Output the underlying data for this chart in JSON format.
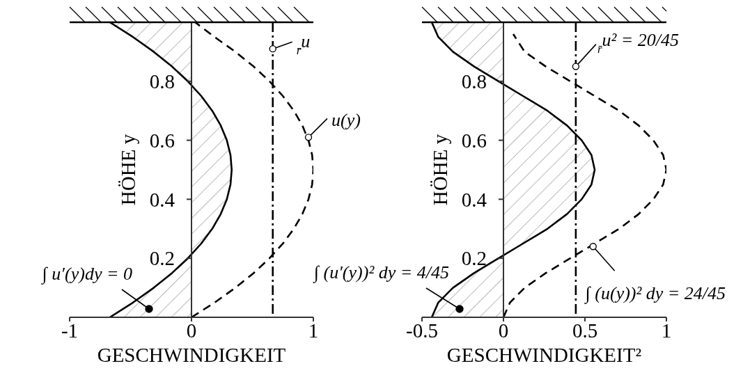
{
  "chart_data": [
    {
      "type": "line",
      "orientation": "horizontal",
      "xlabel": "GESCHWINDIGKEIT",
      "ylabel": "HÖHE y",
      "xlim": [
        -1,
        1
      ],
      "xticks": [
        -1,
        0,
        1
      ],
      "ylim": [
        0,
        1
      ],
      "yticks": [
        0.2,
        0.4,
        0.6,
        0.8
      ],
      "series": [
        {
          "type": "area",
          "color": "#000000",
          "line_style": "solid",
          "values": [
            -0.67,
            -0.48,
            -0.31,
            -0.16,
            -0.03,
            0.08,
            0.17,
            0.24,
            0.29,
            0.32,
            0.33,
            0.32,
            0.29,
            0.24,
            0.17,
            0.08,
            -0.03,
            -0.16,
            -0.31,
            -0.48,
            -0.67
          ],
          "x": [
            0,
            0.05,
            0.1,
            0.15,
            0.2,
            0.25,
            0.3,
            0.35,
            0.4,
            0.45,
            0.5,
            0.55,
            0.6,
            0.65,
            0.7,
            0.75,
            0.8,
            0.85,
            0.9,
            0.95,
            1
          ]
        },
        {
          "color": "#000000",
          "line_style": "dashed",
          "values": [
            0,
            0.19,
            0.36,
            0.51,
            0.64,
            0.75,
            0.84,
            0.91,
            0.96,
            0.99,
            1,
            0.99,
            0.96,
            0.91,
            0.84,
            0.75,
            0.64,
            0.51,
            0.36,
            0.19,
            0.03
          ],
          "x": [
            0,
            0.05,
            0.1,
            0.15,
            0.2,
            0.25,
            0.3,
            0.35,
            0.4,
            0.45,
            0.5,
            0.55,
            0.6,
            0.65,
            0.7,
            0.75,
            0.8,
            0.85,
            0.9,
            0.95,
            1
          ]
        }
      ],
      "ref_lines": [
        {
          "axis": "x",
          "value": 0.667,
          "color": "#000000"
        }
      ],
      "annotations": [
        {
          "text": "$_{r̄}$u",
          "x": 0.667,
          "y": 0.91
        },
        {
          "text": "u(y)",
          "x": 0.96,
          "y": 0.61
        },
        "∫ u′(y)dy = 0"
      ]
    },
    {
      "type": "line",
      "orientation": "horizontal",
      "xlabel": "GESCHWINDIGKEIT²",
      "ylabel": "HÖHE y",
      "xlim": [
        -0.5,
        1
      ],
      "xticks": [
        -0.5,
        0,
        0.5,
        1
      ],
      "ylim": [
        0,
        1
      ],
      "yticks": [
        0.2,
        0.4,
        0.6,
        0.8
      ],
      "series": [
        {
          "type": "area",
          "color": "#000000",
          "line_style": "solid",
          "values": [
            -0.44,
            -0.4,
            -0.31,
            -0.18,
            -0.03,
            0.12,
            0.27,
            0.39,
            0.48,
            0.54,
            0.56,
            0.54,
            0.48,
            0.39,
            0.27,
            0.12,
            -0.03,
            -0.18,
            -0.31,
            -0.4,
            -0.44
          ],
          "x": [
            0,
            0.05,
            0.1,
            0.15,
            0.2,
            0.25,
            0.3,
            0.35,
            0.4,
            0.45,
            0.5,
            0.55,
            0.6,
            0.65,
            0.7,
            0.75,
            0.8,
            0.85,
            0.9,
            0.95,
            1
          ]
        },
        {
          "color": "#000000",
          "line_style": "dashed",
          "values": [
            0,
            0.04,
            0.13,
            0.26,
            0.41,
            0.56,
            0.71,
            0.83,
            0.92,
            0.98,
            1,
            0.98,
            0.92,
            0.83,
            0.71,
            0.56,
            0.41,
            0.26,
            0.13,
            0.06
          ],
          "x": [
            0,
            0.05,
            0.1,
            0.15,
            0.2,
            0.25,
            0.3,
            0.35,
            0.4,
            0.45,
            0.5,
            0.55,
            0.6,
            0.65,
            0.7,
            0.75,
            0.8,
            0.85,
            0.9,
            0.96
          ]
        }
      ],
      "ref_lines": [
        {
          "axis": "x",
          "value": 0.444,
          "color": "#000000"
        }
      ],
      "annotations": [
        {
          "text": "$_{r̄}$u² = 20/45",
          "x": 0.444,
          "y": 0.85
        },
        {
          "text": "∫ (u(y))² dy = 24/45",
          "x": 0.55,
          "y": 0.24
        },
        "∫ (u′(y))² dy = 4/45"
      ]
    }
  ]
}
